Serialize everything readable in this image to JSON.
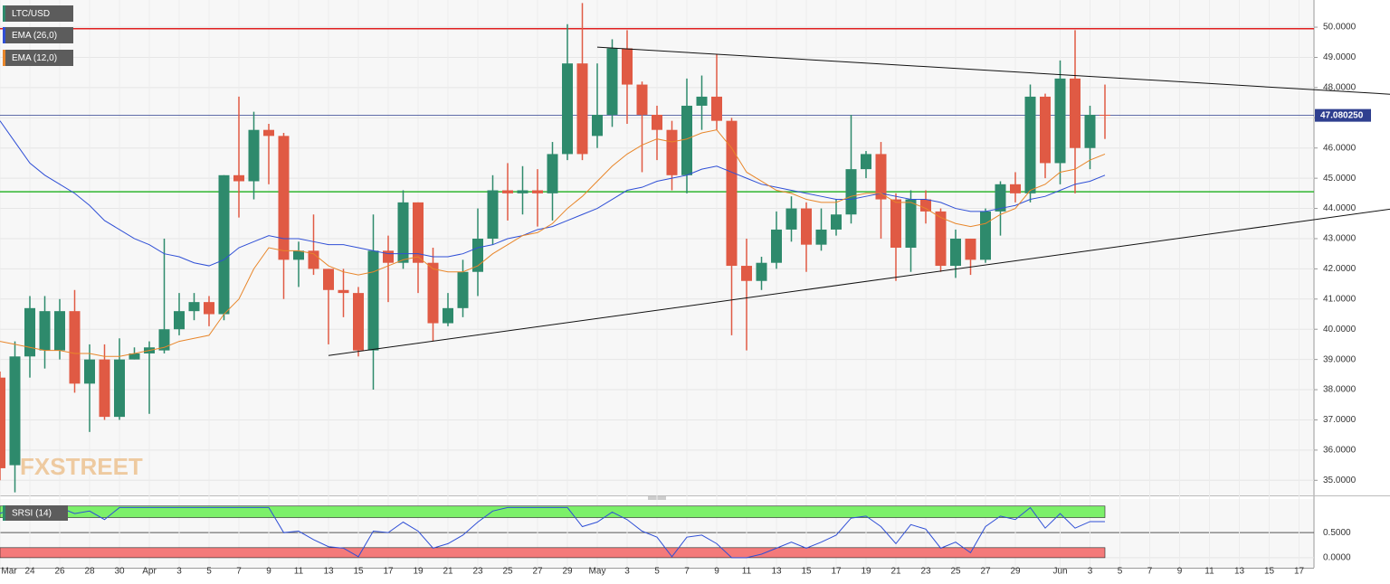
{
  "chart_data": {
    "type": "candlestick",
    "symbol": "LTC/USD",
    "watermark": "FXSTREET",
    "categories": [
      "Mar",
      null,
      "24",
      null,
      "26",
      null,
      "28",
      null,
      "30",
      null,
      "Apr",
      null,
      "3",
      null,
      "5",
      null,
      "7",
      null,
      "9",
      null,
      "11",
      null,
      "13",
      null,
      "15",
      null,
      "17",
      null,
      "19",
      null,
      "21",
      null,
      "23",
      null,
      "25",
      null,
      "27",
      null,
      "29",
      null,
      "May",
      null,
      "3",
      null,
      "5",
      null,
      "7",
      null,
      "9",
      null,
      "11",
      null,
      "13",
      null,
      "15",
      null,
      "17",
      null,
      "19",
      null,
      "21",
      null,
      "23",
      null,
      "25",
      null,
      "27",
      null,
      "29",
      null,
      null,
      "Jun",
      null,
      "3",
      null,
      "5",
      null,
      "7",
      null,
      "9",
      null,
      "11",
      null,
      "13",
      null,
      "15",
      null,
      "17"
    ],
    "open": [
      38.4,
      35.5,
      39.1,
      39.3,
      39.3,
      40.6,
      38.2,
      39.0,
      37.1,
      39.0,
      39.2,
      39.3,
      40.0,
      40.6,
      40.9,
      40.5,
      45.1,
      44.9,
      46.6,
      46.4,
      42.3,
      42.6,
      42.0,
      41.3,
      41.2,
      39.3,
      42.6,
      42.2,
      44.2,
      42.2,
      40.2,
      40.7,
      41.9,
      43.0,
      44.6,
      44.5,
      44.6,
      44.5,
      45.8,
      48.8,
      46.4,
      47.1,
      49.3,
      48.1,
      47.1,
      46.6,
      45.1,
      47.4,
      47.7,
      46.9,
      42.1,
      41.6,
      42.2,
      43.3,
      44.0,
      42.8,
      43.3,
      43.8,
      45.3,
      45.8,
      44.3,
      42.7,
      44.3,
      43.9,
      42.1,
      43.0,
      42.3,
      43.9,
      44.8,
      44.5,
      47.7,
      45.5,
      48.3,
      46.0,
      47.1,
      null,
      null,
      null,
      null,
      null,
      null,
      null,
      null,
      null,
      null,
      null,
      null,
      null
    ],
    "high": [
      38.6,
      39.6,
      41.1,
      41.1,
      41.0,
      41.3,
      39.5,
      39.5,
      39.7,
      39.4,
      39.6,
      43.0,
      41.2,
      41.2,
      41.1,
      45.1,
      47.7,
      47.2,
      46.8,
      46.5,
      42.9,
      43.8,
      42.0,
      42.0,
      41.4,
      43.8,
      43.1,
      44.6,
      44.2,
      42.7,
      41.2,
      42.3,
      44.0,
      45.1,
      45.5,
      45.4,
      45.3,
      46.2,
      50.1,
      50.8,
      48.8,
      49.6,
      49.9,
      48.2,
      47.4,
      46.9,
      48.3,
      48.4,
      49.1,
      47.0,
      43.0,
      42.4,
      43.9,
      44.4,
      44.2,
      44.0,
      44.3,
      47.1,
      45.9,
      46.2,
      44.5,
      44.6,
      44.6,
      44.0,
      43.3,
      43.0,
      44.0,
      44.9,
      45.2,
      48.1,
      47.8,
      48.9,
      49.9,
      47.4,
      48.1,
      null,
      null,
      null,
      null,
      null,
      null,
      null,
      null,
      null,
      null,
      null,
      null,
      null
    ],
    "low": [
      35.0,
      34.6,
      38.4,
      38.7,
      39.0,
      37.9,
      36.6,
      37.0,
      37.0,
      39.0,
      37.2,
      39.2,
      39.8,
      40.3,
      40.1,
      40.3,
      43.7,
      44.3,
      44.8,
      41.0,
      41.4,
      41.8,
      39.5,
      40.4,
      39.1,
      38.0,
      40.9,
      42.0,
      41.2,
      39.6,
      40.1,
      40.4,
      41.1,
      42.8,
      43.6,
      43.8,
      43.4,
      43.6,
      45.6,
      45.6,
      46.0,
      46.7,
      46.8,
      45.2,
      45.6,
      44.6,
      44.5,
      46.6,
      46.6,
      39.8,
      39.3,
      41.3,
      42.0,
      42.9,
      41.9,
      42.6,
      43.1,
      43.5,
      45.0,
      43.0,
      41.6,
      41.9,
      43.5,
      41.9,
      41.7,
      41.8,
      42.2,
      43.1,
      44.2,
      44.2,
      45.0,
      44.8,
      44.5,
      45.3,
      46.3,
      null,
      null,
      null,
      null,
      null,
      null,
      null,
      null,
      null,
      null,
      null,
      null,
      null
    ],
    "close": [
      35.4,
      39.1,
      40.7,
      40.6,
      40.6,
      38.2,
      39.0,
      37.1,
      39.0,
      39.2,
      39.4,
      40.0,
      40.6,
      40.9,
      40.5,
      45.1,
      44.9,
      46.6,
      46.4,
      42.3,
      42.6,
      42.0,
      41.3,
      41.2,
      39.3,
      42.6,
      42.2,
      44.2,
      42.2,
      40.2,
      40.7,
      41.9,
      43.0,
      44.6,
      44.5,
      44.6,
      44.5,
      45.8,
      48.8,
      45.8,
      47.1,
      49.3,
      48.1,
      47.1,
      46.6,
      45.1,
      47.4,
      47.7,
      46.9,
      42.1,
      41.6,
      42.2,
      43.3,
      44.0,
      42.8,
      43.3,
      43.8,
      45.3,
      45.8,
      44.3,
      42.7,
      44.3,
      43.9,
      42.1,
      43.0,
      42.3,
      43.9,
      44.8,
      44.5,
      47.7,
      45.5,
      48.3,
      46.0,
      47.1,
      47.08,
      null,
      null,
      null,
      null,
      null,
      null,
      null,
      null,
      null,
      null,
      null,
      null,
      null
    ],
    "up_color": "#2e8a6c",
    "down_color": "#e05a44",
    "series": [
      {
        "name": "EMA (26,0)",
        "color": "#2f4fd6",
        "values": [
          46.9,
          46.2,
          45.5,
          45.1,
          44.8,
          44.5,
          44.1,
          43.6,
          43.3,
          43.0,
          42.8,
          42.5,
          42.4,
          42.2,
          42.1,
          42.3,
          42.7,
          42.9,
          43.1,
          43.0,
          43.0,
          42.9,
          42.8,
          42.8,
          42.7,
          42.6,
          42.5,
          42.5,
          42.5,
          42.4,
          42.4,
          42.5,
          42.7,
          42.8,
          43.0,
          43.1,
          43.3,
          43.4,
          43.6,
          43.8,
          44.0,
          44.3,
          44.6,
          44.7,
          44.9,
          45.0,
          45.1,
          45.3,
          45.4,
          45.2,
          45.0,
          44.8,
          44.7,
          44.6,
          44.5,
          44.4,
          44.3,
          44.3,
          44.4,
          44.5,
          44.4,
          44.3,
          44.3,
          44.2,
          44.0,
          43.9,
          43.9,
          44.0,
          44.1,
          44.3,
          44.4,
          44.6,
          44.8,
          44.9,
          45.1,
          null,
          null,
          null,
          null,
          null,
          null,
          null,
          null,
          null,
          null,
          null,
          null,
          null
        ]
      },
      {
        "name": "EMA (12,0)",
        "color": "#e8862a",
        "values": [
          39.6,
          39.5,
          39.4,
          39.3,
          39.3,
          39.2,
          39.2,
          39.1,
          39.1,
          39.2,
          39.3,
          39.4,
          39.6,
          39.7,
          39.8,
          40.5,
          41.0,
          42.0,
          42.7,
          42.6,
          42.6,
          42.5,
          42.1,
          41.9,
          41.8,
          41.9,
          42.1,
          42.3,
          42.4,
          42.0,
          41.9,
          41.9,
          42.1,
          42.5,
          42.8,
          43.1,
          43.2,
          43.5,
          44.0,
          44.4,
          44.9,
          45.4,
          45.8,
          46.1,
          46.3,
          46.2,
          46.3,
          46.5,
          46.6,
          46.0,
          45.2,
          44.9,
          44.6,
          44.5,
          44.3,
          44.2,
          44.2,
          44.4,
          44.5,
          44.5,
          44.2,
          44.2,
          44.0,
          43.7,
          43.5,
          43.4,
          43.5,
          43.8,
          44.0,
          44.6,
          44.8,
          45.2,
          45.3,
          45.6,
          45.8,
          null,
          null,
          null,
          null,
          null,
          null,
          null,
          null,
          null,
          null,
          null,
          null,
          null
        ]
      }
    ],
    "hlines": [
      {
        "value": 49.95,
        "color": "#e02020"
      },
      {
        "value": 44.55,
        "color": "#2fb52f"
      }
    ],
    "trendlines": [
      {
        "x": [
          40,
          87
        ],
        "values": [
          49.34,
          47.96
        ]
      },
      {
        "x": [
          22,
          87
        ],
        "values": [
          39.13,
          43.56
        ]
      }
    ],
    "last_price": {
      "value": 47.08025,
      "label": "47.080250"
    },
    "ylim": [
      34.5,
      50.9
    ],
    "yticks": [
      {
        "value": 35,
        "label": "35.0000"
      },
      {
        "value": 36,
        "label": "36.0000"
      },
      {
        "value": 37,
        "label": "37.0000"
      },
      {
        "value": 38,
        "label": "38.0000"
      },
      {
        "value": 39,
        "label": "39.0000"
      },
      {
        "value": 40,
        "label": "40.0000"
      },
      {
        "value": 41,
        "label": "41.0000"
      },
      {
        "value": 42,
        "label": "42.0000"
      },
      {
        "value": 43,
        "label": "43.0000"
      },
      {
        "value": 44,
        "label": "44.0000"
      },
      {
        "value": 45,
        "label": "45.0000"
      },
      {
        "value": 46,
        "label": "46.0000"
      },
      {
        "value": 47,
        "label": "47.0000"
      },
      {
        "value": 48,
        "label": "48.0000"
      },
      {
        "value": 49,
        "label": "49.0000"
      },
      {
        "value": 50,
        "label": "50.0000"
      }
    ],
    "grid": true,
    "indicator": {
      "name": "SRSI (14)",
      "color": "#2f4fd6",
      "values": [
        0.88,
        1.0,
        0.93,
        1.0,
        1.0,
        0.88,
        0.93,
        0.76,
        1.0,
        1.0,
        1.0,
        1.0,
        1.0,
        1.0,
        1.0,
        1.0,
        1.0,
        1.0,
        1.0,
        0.5,
        0.53,
        0.36,
        0.22,
        0.19,
        0.02,
        0.53,
        0.5,
        0.71,
        0.53,
        0.19,
        0.28,
        0.45,
        0.71,
        0.93,
        1.0,
        1.0,
        1.0,
        1.0,
        1.0,
        0.62,
        0.71,
        0.91,
        0.76,
        0.53,
        0.41,
        0.02,
        0.41,
        0.45,
        0.28,
        0,
        0,
        0.07,
        0.19,
        0.31,
        0.19,
        0.31,
        0.45,
        0.79,
        0.83,
        0.62,
        0.28,
        0.66,
        0.57,
        0.19,
        0.31,
        0.1,
        0.62,
        0.83,
        0.76,
        1.0,
        0.59,
        0.88,
        0.59,
        0.72,
        0.72,
        null,
        null,
        null,
        null,
        null,
        null,
        null,
        null,
        null,
        null,
        null,
        null,
        null
      ],
      "overbought": [
        0.8,
        1.03
      ],
      "oversold": [
        0,
        0.2
      ],
      "overbought_color": "#7cf06a",
      "oversold_color": "#f47a7a",
      "ylim": [
        -0.2,
        1.17
      ],
      "yticks": [
        {
          "value": 0.5,
          "label": "0.5000"
        },
        {
          "value": 0,
          "label": "0.0000"
        }
      ]
    }
  }
}
